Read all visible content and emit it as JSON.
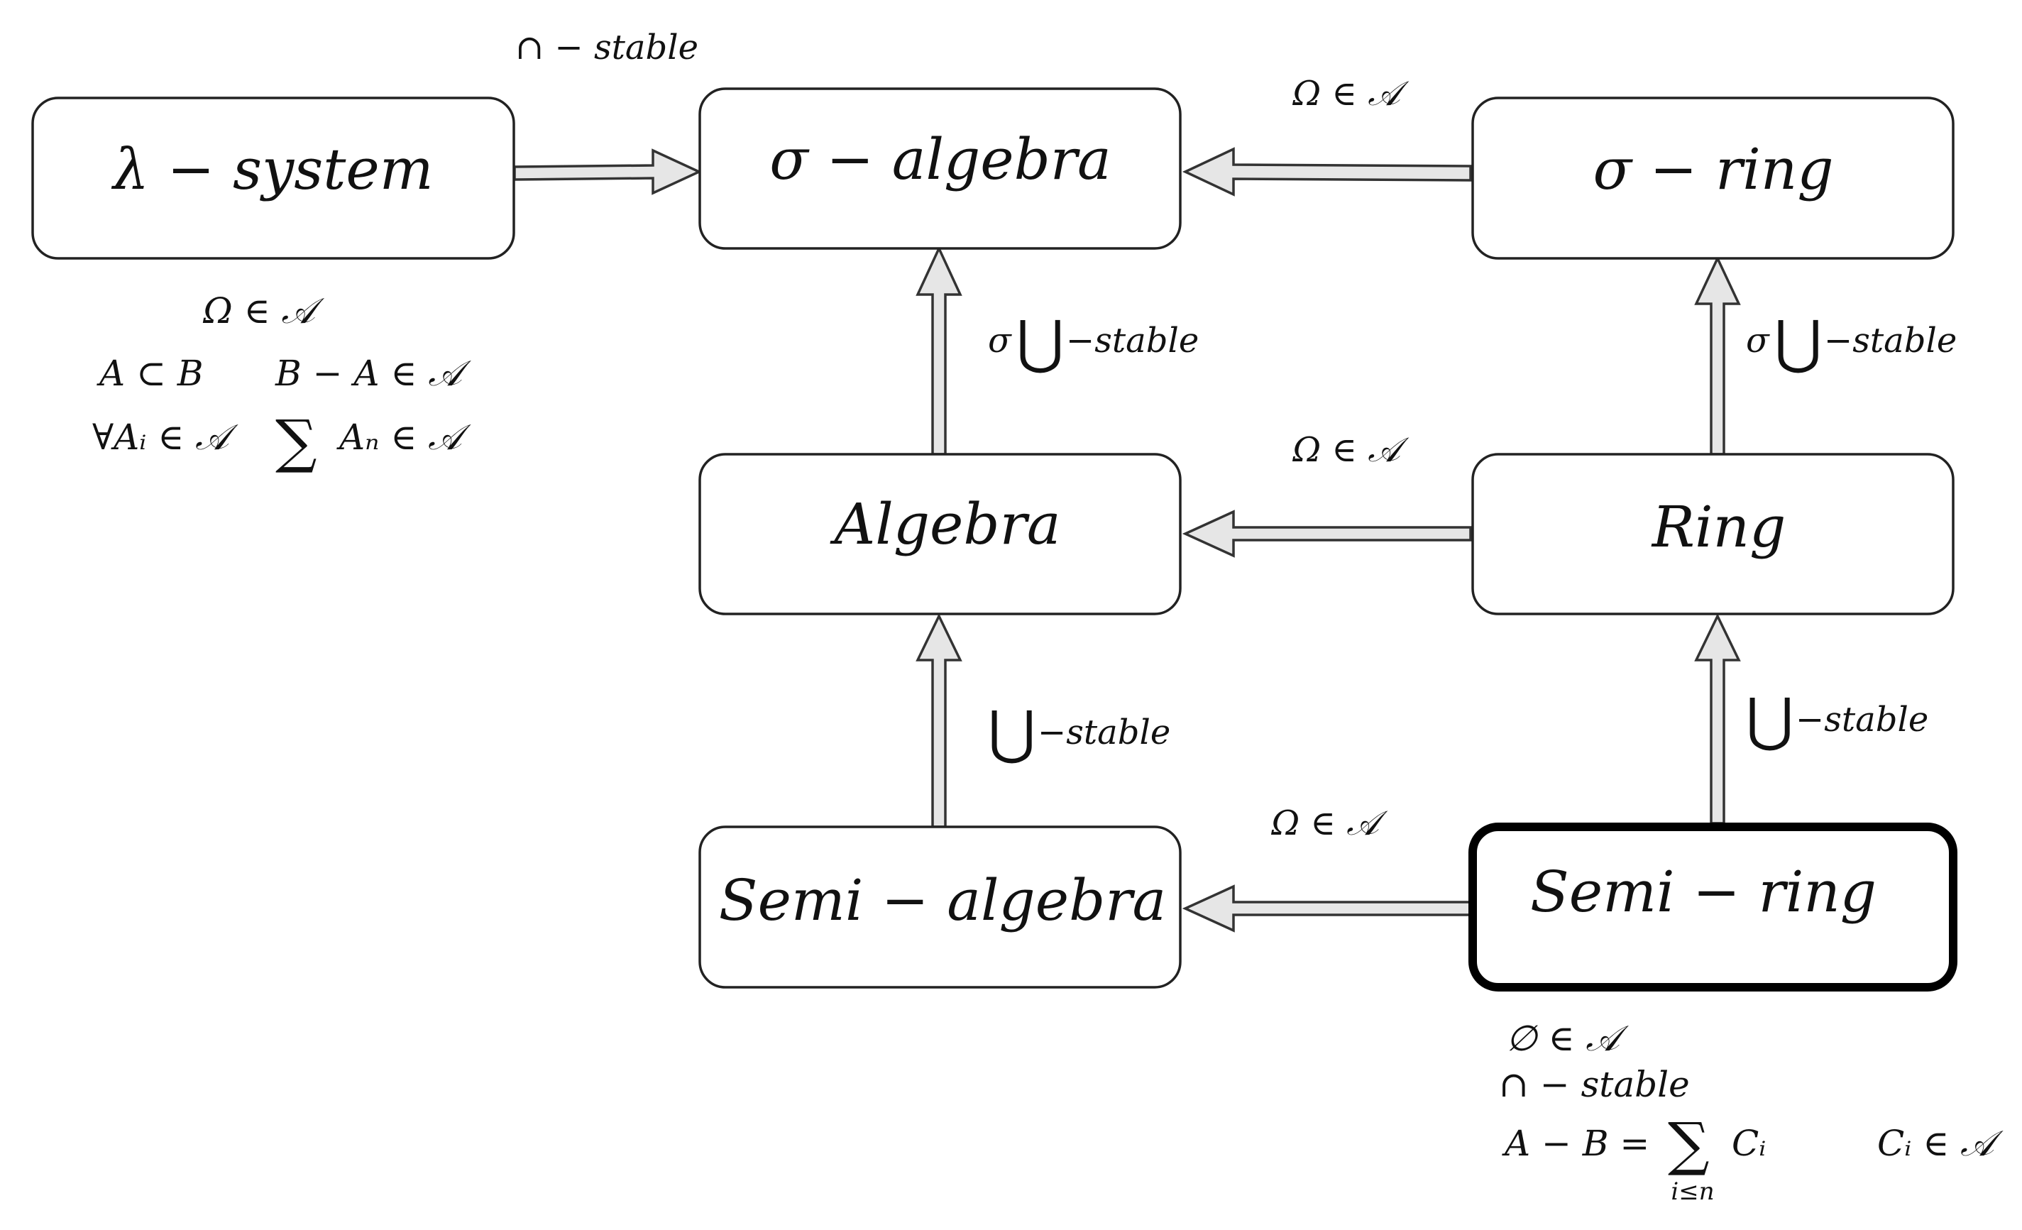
{
  "nodes": {
    "lambda_system": "λ − system",
    "sigma_algebra": "σ − algebra",
    "sigma_ring": "σ − ring",
    "algebra": "Algebra",
    "ring": "Ring",
    "semi_algebra": "Semi − algebra",
    "semi_ring": "Semi − ring"
  },
  "edges": {
    "lambda_to_sigma_algebra": "∩ − stable",
    "sigma_ring_to_sigma_algebra": "Ω ∈ 𝒜",
    "algebra_to_sigma_algebra_prefix": "σ",
    "algebra_to_sigma_algebra_symbol": "⋃",
    "algebra_to_sigma_algebra_suffix": "−stable",
    "ring_to_sigma_ring_prefix": "σ",
    "ring_to_sigma_ring_symbol": "⋃",
    "ring_to_sigma_ring_suffix": "−stable",
    "ring_to_algebra": "Ω ∈ 𝒜",
    "semi_algebra_to_algebra_symbol": "⋃",
    "semi_algebra_to_algebra_suffix": "−stable",
    "semi_ring_to_ring_symbol": "⋃",
    "semi_ring_to_ring_suffix": "−stable",
    "semi_ring_to_semi_algebra": "Ω ∈ 𝒜"
  },
  "lambda_conditions": {
    "line1": "Ω ∈ 𝒜",
    "line2_left": "A ⊂ B",
    "line2_right": "B − A ∈ 𝒜",
    "line3_left": "∀Aᵢ ∈ 𝒜",
    "line3_sum": "∑",
    "line3_right": "Aₙ ∈ 𝒜"
  },
  "semi_ring_conditions": {
    "line1": "∅ ∈ 𝒜",
    "line2": "∩ − stable",
    "line3_left": "A − B =",
    "line3_sum": "∑",
    "line3_sum_index": "i≤n",
    "line3_term": "Cᵢ",
    "line3_right": "Cᵢ ∈ 𝒜"
  }
}
